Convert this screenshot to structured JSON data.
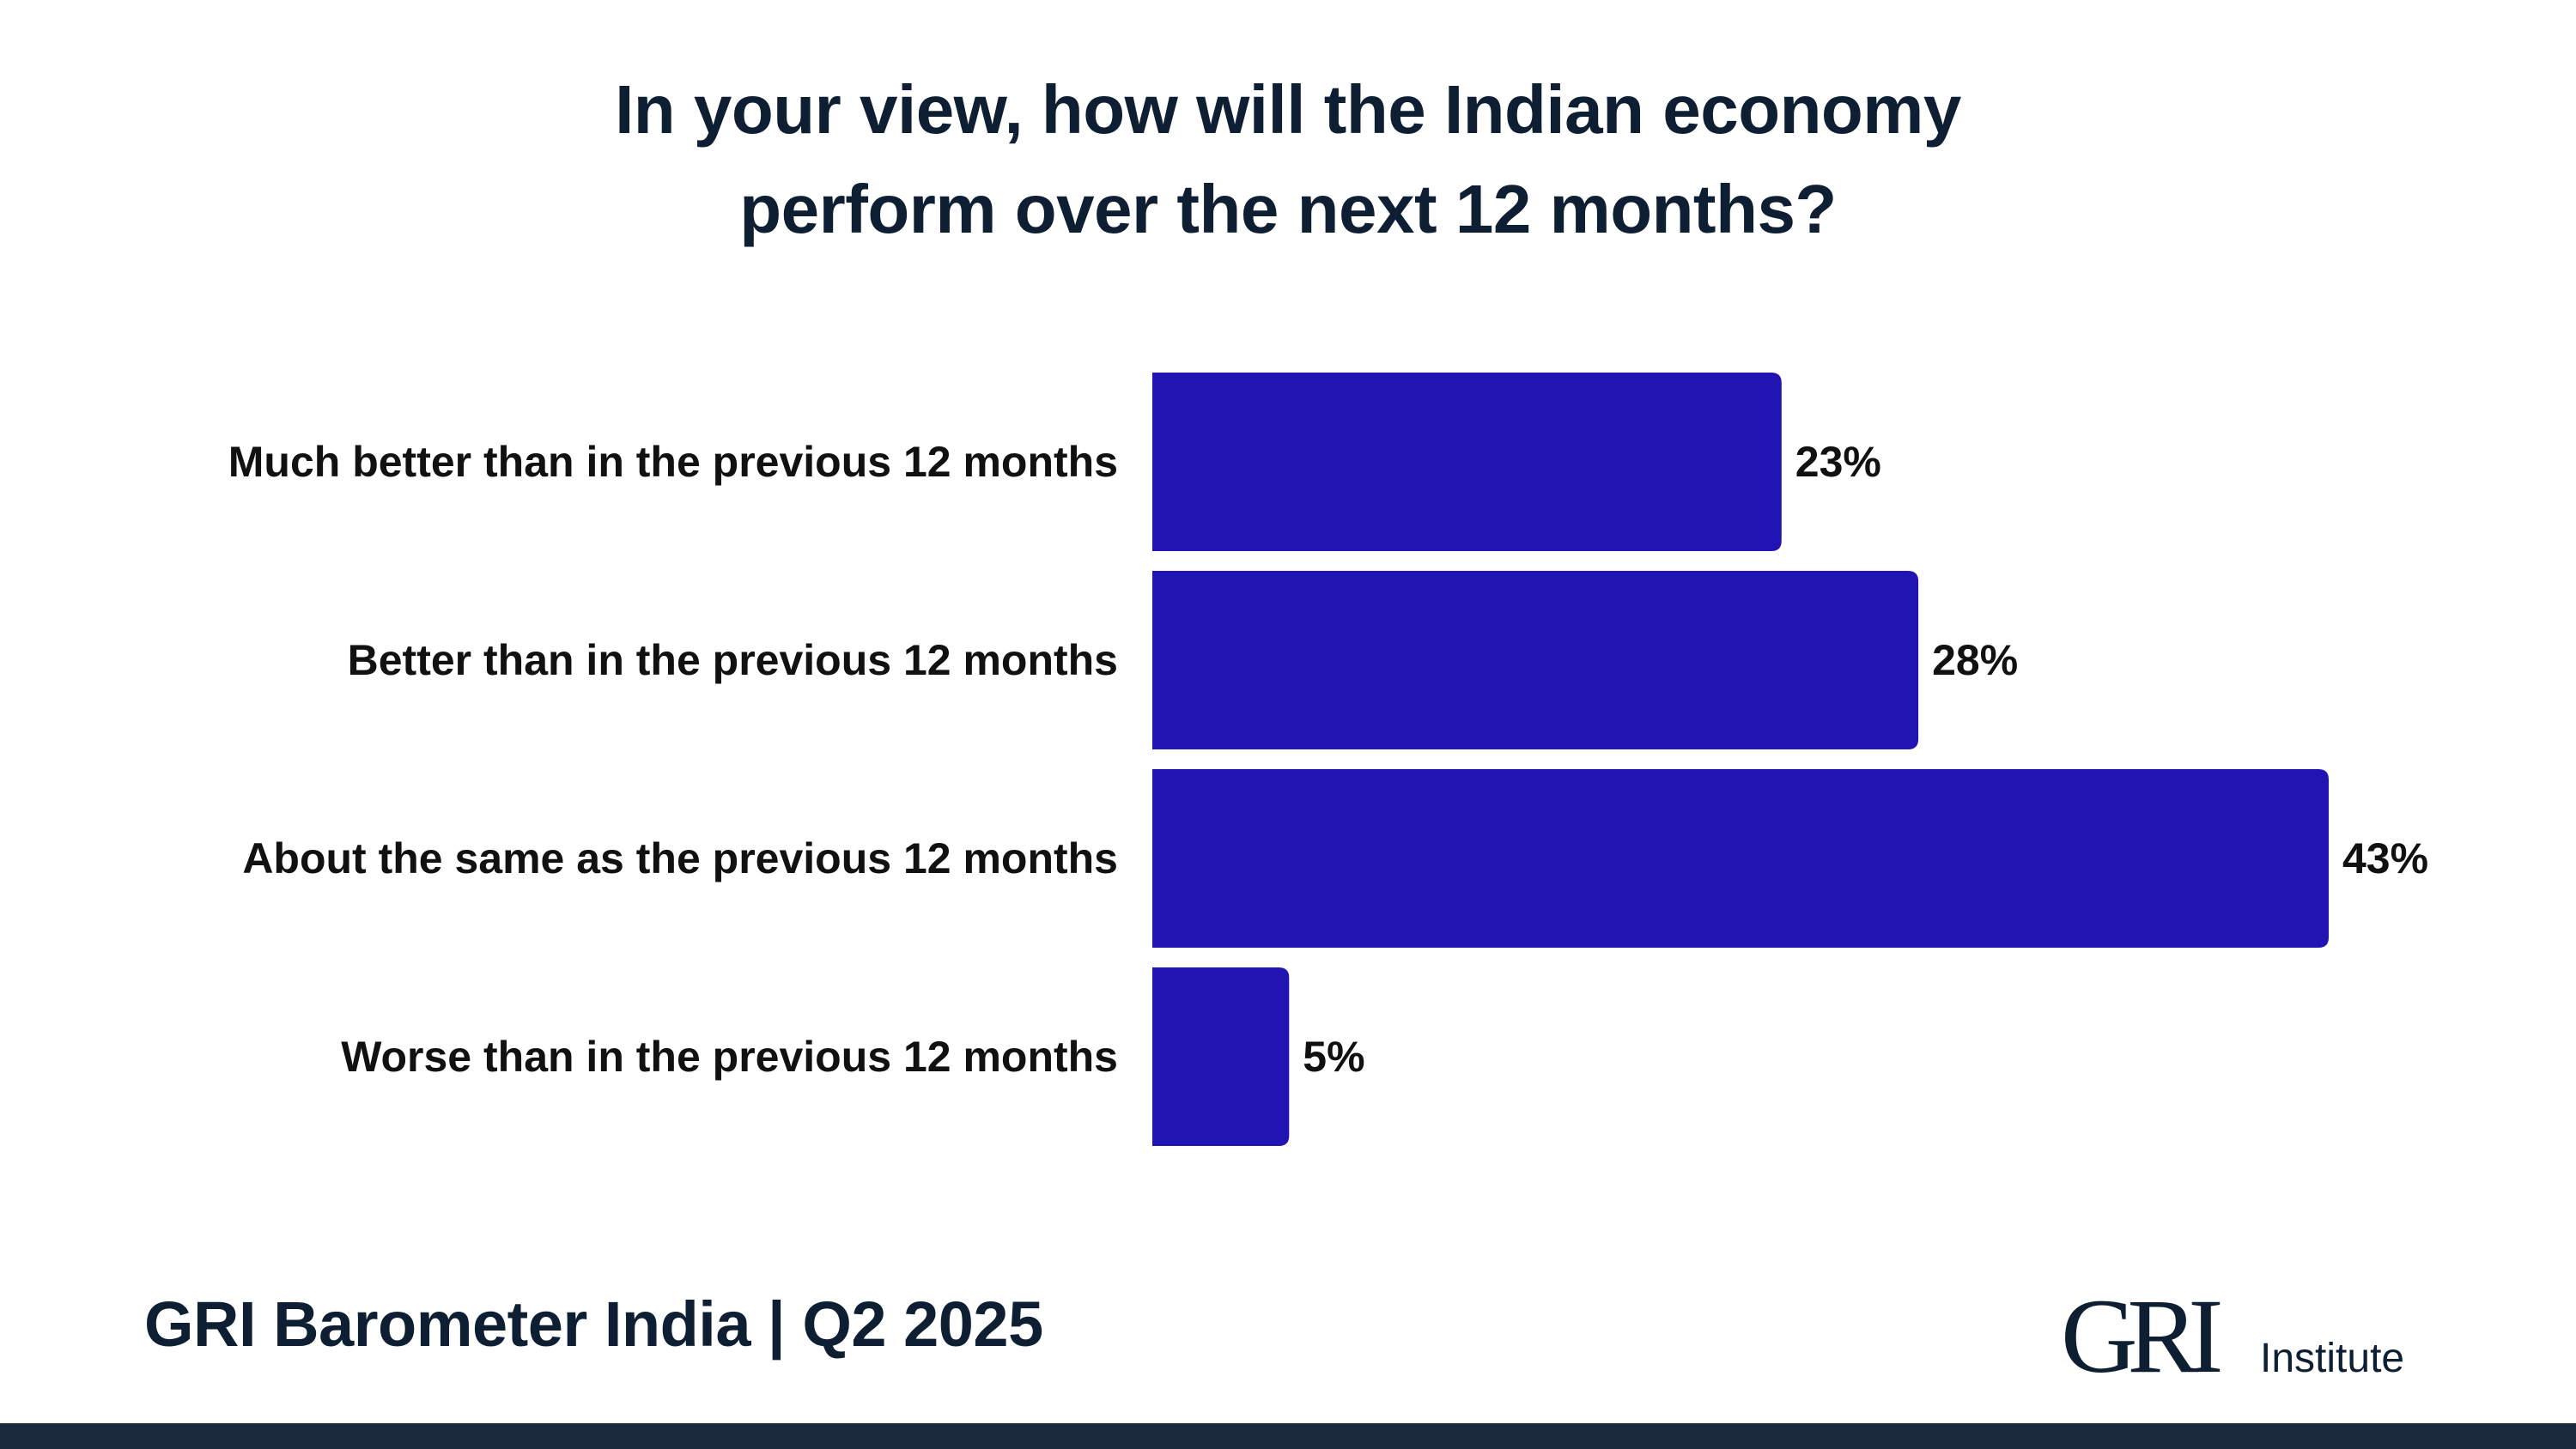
{
  "colors": {
    "bar": "#2114b3",
    "text": "#0f1f33",
    "bottom_bar": "#1c2a3d"
  },
  "chart_data": {
    "type": "bar",
    "orientation": "horizontal",
    "title": "In your view, how will the Indian economy\nperform over the next 12 months?",
    "categories": [
      "Much better than in the previous 12 months",
      "Better than in the previous 12 months",
      "About the same as the previous 12 months",
      "Worse than in the previous 12 months"
    ],
    "values": [
      23,
      28,
      43,
      5
    ],
    "value_labels": [
      "23%",
      "28%",
      "43%",
      "5%"
    ],
    "unit": "%",
    "xlim": [
      0,
      43
    ],
    "grid": false,
    "legend": "none"
  },
  "footer": {
    "source": "GRI Barometer India | Q2 2025",
    "logo_mark": "GRI",
    "logo_text": "Institute"
  }
}
